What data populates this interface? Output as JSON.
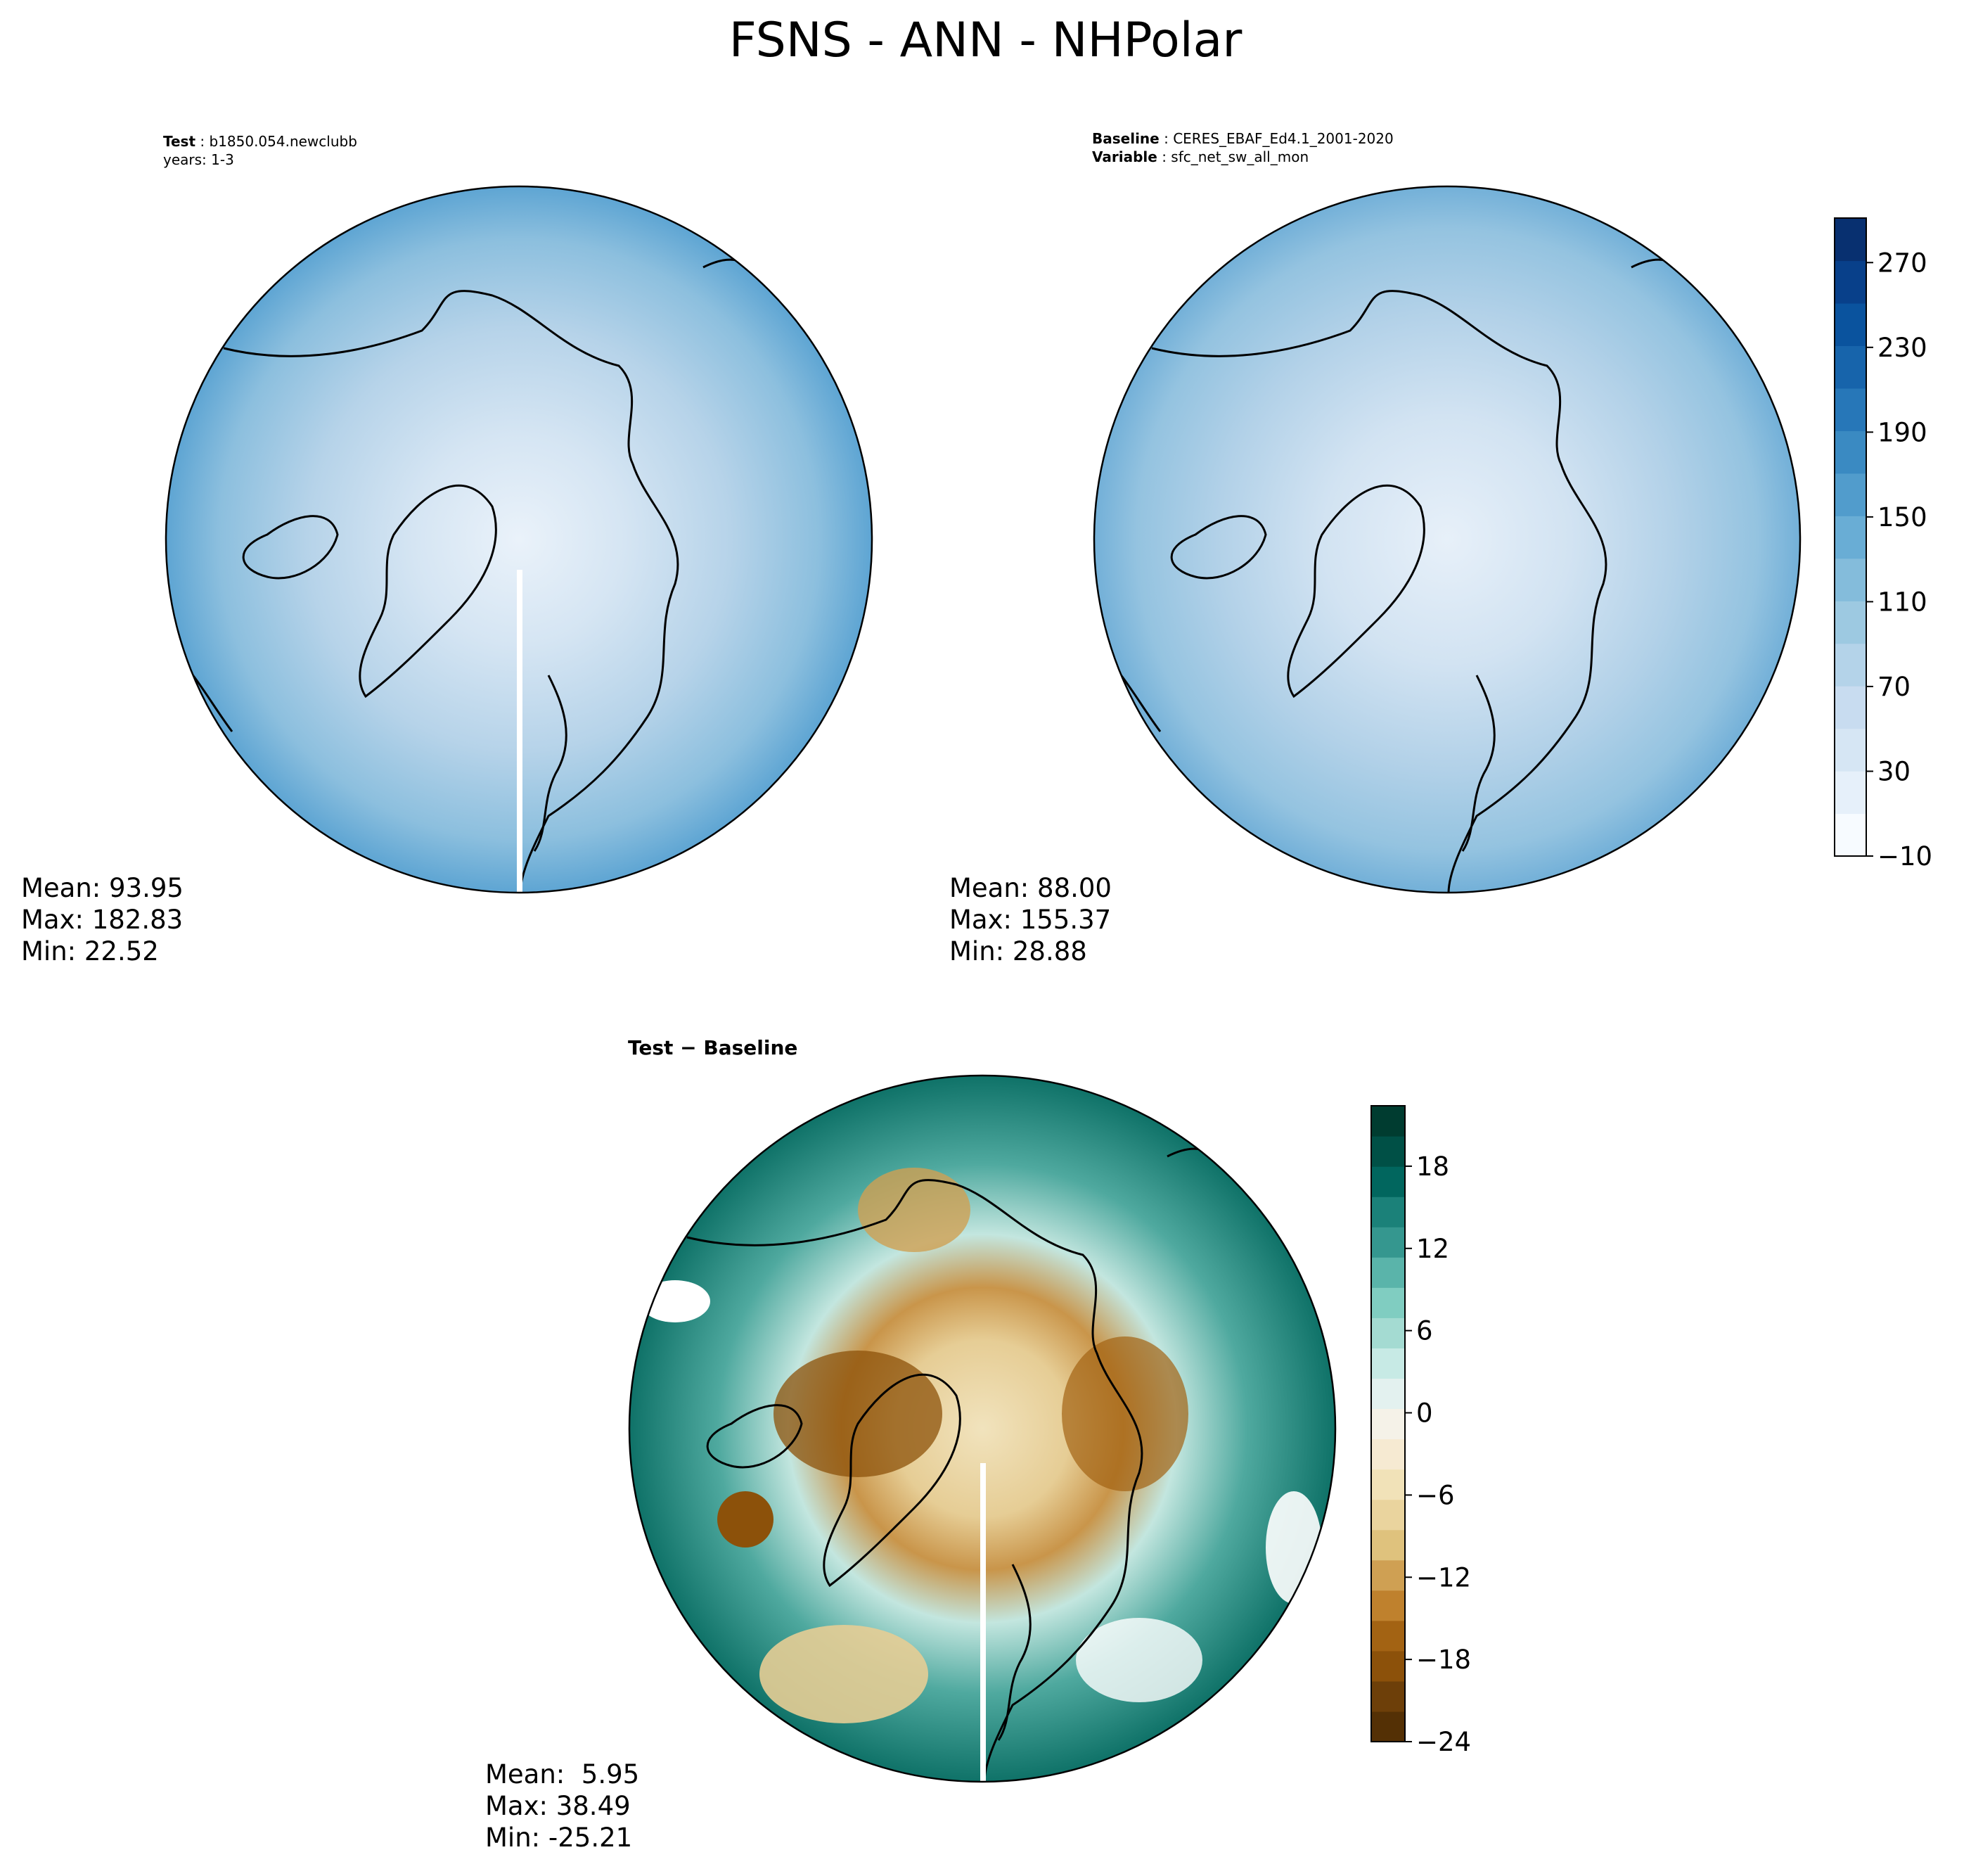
{
  "title": "FSNS - ANN - NHPolar",
  "panels": {
    "test": {
      "header_label": "Test",
      "header_value": "b1850.054.newclubb",
      "header_line2": "years: 1-3",
      "stats": {
        "mean": "Mean: 93.95",
        "max": "Max: 182.83",
        "min": "Min: 22.52"
      }
    },
    "baseline": {
      "header_label": "Baseline",
      "header_value": "CERES_EBAF_Ed4.1_2001-2020",
      "header_label2": "Variable",
      "header_value2": "sfc_net_sw_all_mon",
      "stats": {
        "mean": "Mean: 88.00",
        "max": "Max: 155.37",
        "min": "Min: 28.88"
      }
    },
    "diff": {
      "header": "Test − Baseline",
      "stats": {
        "mean": "Mean:  5.95",
        "max": "Max: 38.49",
        "min": "Min: -25.21"
      }
    }
  },
  "colorbars": {
    "main": {
      "ticks": [
        "−10",
        "30",
        "70",
        "110",
        "150",
        "190",
        "230",
        "270"
      ],
      "colors": [
        "#f7fbff",
        "#e6f0fa",
        "#d6e6f4",
        "#c8dcf0",
        "#b4d3e9",
        "#9dc9e1",
        "#84bcdb",
        "#69add5",
        "#519ccc",
        "#3a8ac2",
        "#2777b8",
        "#1764ab",
        "#0a539e",
        "#08408a",
        "#083070"
      ]
    },
    "diff": {
      "ticks": [
        "−24",
        "−18",
        "−12",
        "−6",
        "0",
        "6",
        "12",
        "18"
      ],
      "colors": [
        "#543005",
        "#6d3f09",
        "#8c510a",
        "#a36313",
        "#bf812d",
        "#cfa053",
        "#dfc27d",
        "#ead49e",
        "#f1e2b8",
        "#f6ead2",
        "#f5f2e8",
        "#e3f1ef",
        "#c7eae5",
        "#a4dbd2",
        "#80cdc1",
        "#5ab4aa",
        "#35978f",
        "#1b8179",
        "#01665e",
        "#005046",
        "#003c30"
      ]
    }
  }
}
